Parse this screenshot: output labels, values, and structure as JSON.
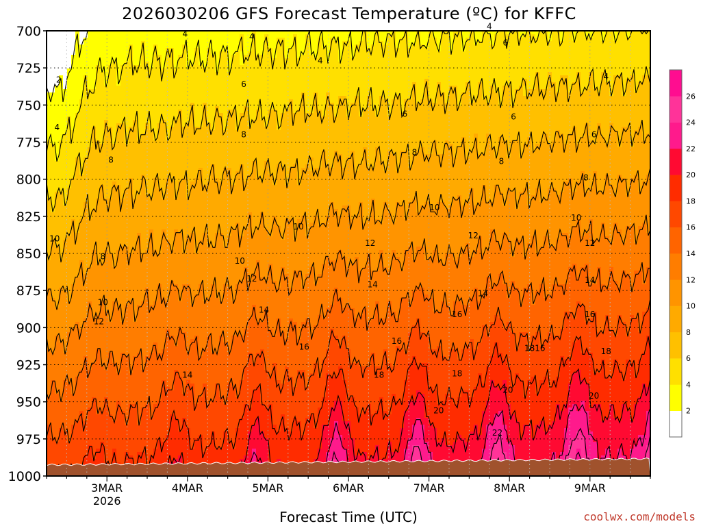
{
  "chart_data": {
    "type": "heatmap",
    "title": "2026030206 GFS Forecast Temperature (ºC) for KFFC",
    "xlabel": "Forecast Time (UTC)",
    "ylabel": "",
    "x_ticks": [
      {
        "label": "3MAR",
        "sub": "2026",
        "day": 3
      },
      {
        "label": "4MAR",
        "sub": "",
        "day": 4
      },
      {
        "label": "5MAR",
        "sub": "",
        "day": 5
      },
      {
        "label": "6MAR",
        "sub": "",
        "day": 6
      },
      {
        "label": "7MAR",
        "sub": "",
        "day": 7
      },
      {
        "label": "8MAR",
        "sub": "",
        "day": 8
      },
      {
        "label": "9MAR",
        "sub": "",
        "day": 9
      }
    ],
    "xlim_days": [
      2.25,
      9.75
    ],
    "y_ticks": [
      700,
      725,
      750,
      775,
      800,
      825,
      850,
      875,
      900,
      925,
      950,
      975,
      1000
    ],
    "ylim": [
      700,
      1000
    ],
    "y_reversed": true,
    "colorbar": {
      "levels": [
        2,
        4,
        6,
        8,
        10,
        12,
        14,
        16,
        18,
        20,
        22,
        24,
        26
      ],
      "labels": [
        "2",
        "4",
        "6",
        "8",
        "10",
        "12",
        "14",
        "16",
        "18",
        "20",
        "22",
        "24",
        "26"
      ],
      "colors": [
        "#ffffff",
        "#ffff00",
        "#ffe000",
        "#ffc000",
        "#ffaa00",
        "#ff9400",
        "#ff7d00",
        "#ff6400",
        "#ff4800",
        "#ff2c00",
        "#ff0a32",
        "#ff1a8c",
        "#ff3399",
        "#ff0d90"
      ]
    },
    "contour_labels": [
      {
        "text": "2",
        "x": 2.4,
        "p": 733
      },
      {
        "text": "4",
        "x": 2.38,
        "p": 765
      },
      {
        "text": "4",
        "x": 3.97,
        "p": 702
      },
      {
        "text": "4",
        "x": 4.8,
        "p": 704
      },
      {
        "text": "4",
        "x": 5.65,
        "p": 720
      },
      {
        "text": "4",
        "x": 7.75,
        "p": 697
      },
      {
        "text": "4",
        "x": 9.2,
        "p": 731
      },
      {
        "text": "6",
        "x": 4.7,
        "p": 736
      },
      {
        "text": "6",
        "x": 6.7,
        "p": 756
      },
      {
        "text": "6",
        "x": 7.95,
        "p": 708
      },
      {
        "text": "6",
        "x": 8.05,
        "p": 758
      },
      {
        "text": "6",
        "x": 9.05,
        "p": 770
      },
      {
        "text": "8",
        "x": 3.05,
        "p": 787
      },
      {
        "text": "8",
        "x": 4.7,
        "p": 770
      },
      {
        "text": "8",
        "x": 6.82,
        "p": 782
      },
      {
        "text": "8",
        "x": 7.9,
        "p": 788
      },
      {
        "text": "8",
        "x": 8.95,
        "p": 799
      },
      {
        "text": "8",
        "x": 2.95,
        "p": 852
      },
      {
        "text": "10",
        "x": 2.35,
        "p": 840
      },
      {
        "text": "10",
        "x": 2.95,
        "p": 883
      },
      {
        "text": "10",
        "x": 4.65,
        "p": 855
      },
      {
        "text": "10",
        "x": 5.38,
        "p": 832
      },
      {
        "text": "10",
        "x": 7.07,
        "p": 819
      },
      {
        "text": "10",
        "x": 8.83,
        "p": 826
      },
      {
        "text": "12",
        "x": 2.9,
        "p": 896
      },
      {
        "text": "12",
        "x": 4.8,
        "p": 867
      },
      {
        "text": "12",
        "x": 6.27,
        "p": 843
      },
      {
        "text": "12",
        "x": 7.55,
        "p": 838
      },
      {
        "text": "12",
        "x": 9.0,
        "p": 843
      },
      {
        "text": "14",
        "x": 4.0,
        "p": 932
      },
      {
        "text": "14",
        "x": 4.95,
        "p": 888
      },
      {
        "text": "14",
        "x": 6.3,
        "p": 871
      },
      {
        "text": "14",
        "x": 7.67,
        "p": 877
      },
      {
        "text": "14",
        "x": 9.0,
        "p": 868
      },
      {
        "text": "16",
        "x": 5.45,
        "p": 913
      },
      {
        "text": "16",
        "x": 6.6,
        "p": 909
      },
      {
        "text": "16",
        "x": 7.35,
        "p": 891
      },
      {
        "text": "16",
        "x": 8.38,
        "p": 914
      },
      {
        "text": "16",
        "x": 9.0,
        "p": 891
      },
      {
        "text": "18",
        "x": 6.38,
        "p": 932
      },
      {
        "text": "18",
        "x": 7.35,
        "p": 931
      },
      {
        "text": "18",
        "x": 8.25,
        "p": 914
      },
      {
        "text": "18",
        "x": 9.2,
        "p": 916
      },
      {
        "text": "20",
        "x": 7.12,
        "p": 956
      },
      {
        "text": "20",
        "x": 7.98,
        "p": 942
      },
      {
        "text": "20",
        "x": 9.05,
        "p": 946
      },
      {
        "text": "22",
        "x": 7.85,
        "p": 971
      }
    ],
    "credit": "coolwx.com/models"
  }
}
